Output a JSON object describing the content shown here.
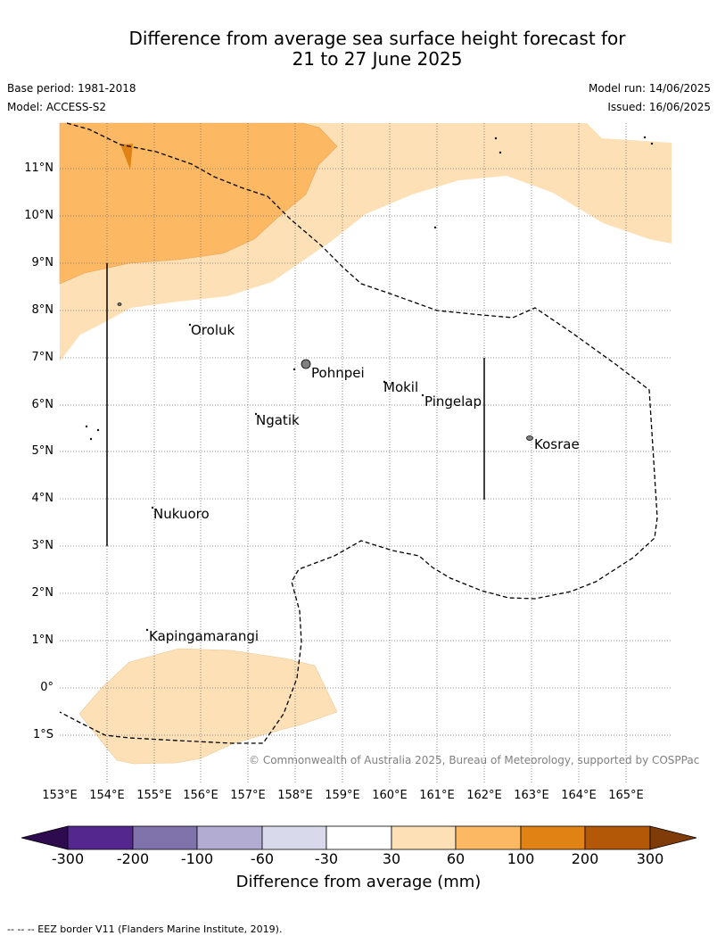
{
  "title_line1": "Difference from average sea surface height forecast for",
  "title_line2": "21 to 27 June 2025",
  "meta": {
    "base_period": "Base period: 1981-2018",
    "model": "Model: ACCESS-S2",
    "model_run": "Model run: 14/06/2025",
    "issued": "Issued: 16/06/2025"
  },
  "lat_labels": [
    "11°N",
    "10°N",
    "9°N",
    "8°N",
    "7°N",
    "6°N",
    "5°N",
    "4°N",
    "3°N",
    "2°N",
    "1°N",
    "0°",
    "1°S"
  ],
  "lon_labels": [
    "153°E",
    "154°E",
    "155°E",
    "156°E",
    "157°E",
    "158°E",
    "159°E",
    "160°E",
    "161°E",
    "162°E",
    "163°E",
    "164°E",
    "165°E"
  ],
  "places": {
    "oroluk": "Oroluk",
    "pohnpei": "Pohnpei",
    "mokil": "Mokil",
    "pingelap": "Pingelap",
    "ngatik": "Ngatik",
    "kosrae": "Kosrae",
    "nukuoro": "Nukuoro",
    "kapingamarangi": "Kapingamarangi"
  },
  "copyright": "© Commonwealth of Australia 2025, Bureau of Meteorology, supported by COSPPac",
  "colorbar": {
    "title": "Difference from average (mm)",
    "ticks": [
      "-300",
      "-200",
      "-100",
      "-60",
      "-30",
      "30",
      "60",
      "100",
      "200",
      "300"
    ],
    "colors": {
      "below_min": "#2e0a4e",
      "c1": "#54278f",
      "c2": "#8073ac",
      "c3": "#b2abd2",
      "c4": "#d8daeb",
      "c5": "#ffffff",
      "c6": "#fee0b6",
      "c7": "#fdb863",
      "c8": "#e08214",
      "c9": "#b35806",
      "above_max": "#7f3b08"
    }
  },
  "footnote": "--  --  -- EEZ border V11 (Flanders Marine Institute, 2019)."
}
